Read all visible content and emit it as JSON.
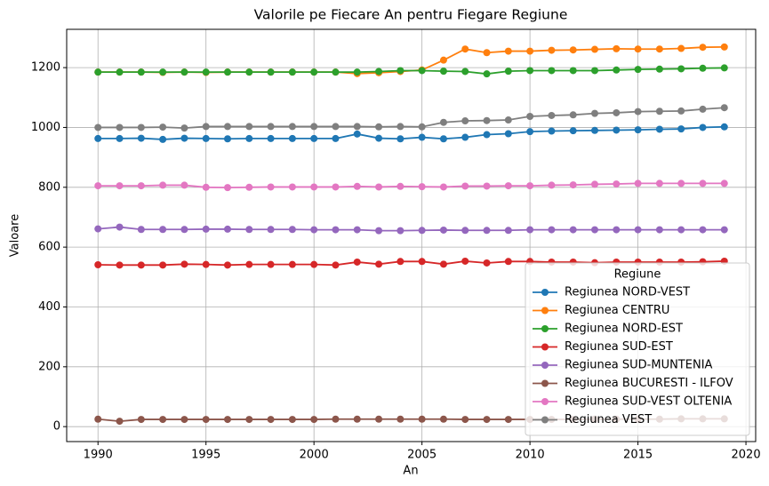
{
  "chart_data": {
    "type": "line",
    "title": "Valorile pe Fiecare An pentru Fiegare Regiune",
    "x_label": "An",
    "y_label": "Valoare",
    "x": [
      1990,
      1991,
      1992,
      1993,
      1994,
      1995,
      1996,
      1997,
      1998,
      1999,
      2000,
      2001,
      2002,
      2003,
      2004,
      2005,
      2006,
      2007,
      2008,
      2009,
      2010,
      2011,
      2012,
      2013,
      2014,
      2015,
      2016,
      2017,
      2018,
      2019
    ],
    "series": [
      {
        "name": "Regiunea NORD-VEST",
        "color": "#1f77b4",
        "values": [
          963,
          963,
          964,
          960,
          964,
          963,
          962,
          963,
          963,
          963,
          963,
          963,
          978,
          964,
          962,
          967,
          962,
          967,
          976,
          979,
          986,
          988,
          989,
          990,
          991,
          992,
          994,
          995,
          1000,
          1002
        ]
      },
      {
        "name": "Regiunea CENTRU",
        "color": "#ff7f0e",
        "values": [
          1185,
          1185,
          1185,
          1184,
          1185,
          1184,
          1185,
          1185,
          1185,
          1185,
          1185,
          1185,
          1180,
          1183,
          1187,
          1192,
          1225,
          1262,
          1250,
          1255,
          1255,
          1258,
          1259,
          1261,
          1263,
          1262,
          1262,
          1264,
          1268,
          1269
        ]
      },
      {
        "name": "Regiunea NORD-EST",
        "color": "#2ca02c",
        "values": [
          1185,
          1185,
          1185,
          1185,
          1185,
          1185,
          1185,
          1185,
          1185,
          1185,
          1185,
          1185,
          1185,
          1187,
          1190,
          1190,
          1188,
          1187,
          1179,
          1188,
          1190,
          1190,
          1190,
          1190,
          1192,
          1194,
          1195,
          1196,
          1198,
          1199
        ]
      },
      {
        "name": "Regiunea SUD-EST",
        "color": "#d62728",
        "values": [
          541,
          540,
          540,
          540,
          543,
          542,
          540,
          542,
          542,
          542,
          542,
          540,
          550,
          543,
          552,
          552,
          543,
          553,
          547,
          552,
          552,
          550,
          550,
          548,
          550,
          550,
          550,
          550,
          551,
          553
        ]
      },
      {
        "name": "Regiunea SUD-MUNTENIA",
        "color": "#9467bd",
        "values": [
          661,
          667,
          659,
          659,
          659,
          660,
          660,
          659,
          659,
          659,
          658,
          658,
          658,
          655,
          655,
          656,
          657,
          656,
          656,
          656,
          658,
          658,
          658,
          658,
          658,
          658,
          658,
          658,
          658,
          658
        ]
      },
      {
        "name": "Regiunea BUCURESTI - ILFOV",
        "color": "#8c564b",
        "values": [
          25,
          18,
          24,
          24,
          24,
          24,
          24,
          24,
          24,
          24,
          24,
          25,
          25,
          25,
          25,
          25,
          25,
          24,
          24,
          24,
          24,
          24,
          24,
          25,
          25,
          25,
          25,
          26,
          26,
          26
        ]
      },
      {
        "name": "Regiunea SUD-VEST OLTENIA",
        "color": "#e377c2",
        "values": [
          805,
          805,
          805,
          807,
          807,
          800,
          799,
          800,
          801,
          801,
          801,
          801,
          803,
          801,
          803,
          802,
          801,
          804,
          804,
          805,
          805,
          807,
          808,
          810,
          811,
          813,
          813,
          813,
          813,
          813
        ]
      },
      {
        "name": "Regiunea VEST",
        "color": "#7f7f7f",
        "values": [
          1000,
          1000,
          1000,
          1001,
          998,
          1003,
          1003,
          1003,
          1003,
          1003,
          1003,
          1003,
          1003,
          1002,
          1003,
          1002,
          1017,
          1022,
          1023,
          1025,
          1037,
          1040,
          1042,
          1047,
          1049,
          1053,
          1054,
          1055,
          1061,
          1066
        ]
      }
    ],
    "xlim": [
      1988.55,
      2020.45
    ],
    "xticks": [
      1990,
      1995,
      2000,
      2005,
      2010,
      2015,
      2020
    ],
    "ylim": [
      -50,
      1328
    ],
    "yticks": [
      0,
      200,
      400,
      600,
      800,
      1000,
      1200
    ],
    "grid": true,
    "legend_title": "Regiune",
    "legend_loc": "lower right"
  }
}
